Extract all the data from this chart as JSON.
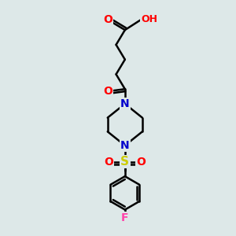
{
  "background_color": "#dde8e8",
  "atom_colors": {
    "C": "#000000",
    "O": "#ff0000",
    "N": "#0000cc",
    "S": "#cccc00",
    "F": "#ff44aa",
    "H": "#888888"
  },
  "bond_color": "#000000",
  "bond_width": 1.8,
  "font_size": 9,
  "fig_width": 3.0,
  "fig_height": 3.0,
  "dpi": 100
}
